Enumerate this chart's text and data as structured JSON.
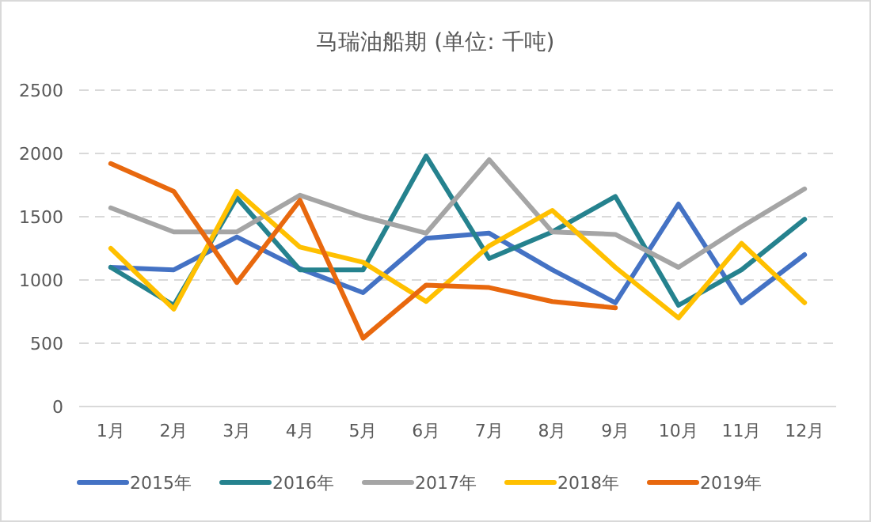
{
  "chart_data": {
    "type": "line",
    "title": "马瑞油船期 (单位: 千吨)",
    "categories": [
      "1月",
      "2月",
      "3月",
      "4月",
      "5月",
      "6月",
      "7月",
      "8月",
      "9月",
      "10月",
      "11月",
      "12月"
    ],
    "series": [
      {
        "name": "2015年",
        "color": "#4472c4",
        "values": [
          1100,
          1080,
          1340,
          1090,
          900,
          1330,
          1370,
          1080,
          820,
          1600,
          820,
          1200
        ]
      },
      {
        "name": "2016年",
        "color": "#25828e",
        "values": [
          1100,
          800,
          1650,
          1080,
          1080,
          1980,
          1170,
          1380,
          1660,
          800,
          1080,
          1480
        ]
      },
      {
        "name": "2017年",
        "color": "#a5a5a5",
        "values": [
          1570,
          1380,
          1380,
          1670,
          1500,
          1370,
          1950,
          1380,
          1360,
          1100,
          1420,
          1720
        ]
      },
      {
        "name": "2018年",
        "color": "#ffc000",
        "values": [
          1250,
          770,
          1700,
          1260,
          1140,
          830,
          1270,
          1550,
          1100,
          700,
          1290,
          820
        ]
      },
      {
        "name": "2019年",
        "color": "#e8680e",
        "values": [
          1920,
          1700,
          980,
          1630,
          540,
          960,
          940,
          830,
          780,
          null,
          null,
          null
        ]
      }
    ],
    "ylim": [
      0,
      2500
    ],
    "yticks": [
      0,
      500,
      1000,
      1500,
      2000,
      2500
    ],
    "grid": "y",
    "legend": "bottom"
  }
}
